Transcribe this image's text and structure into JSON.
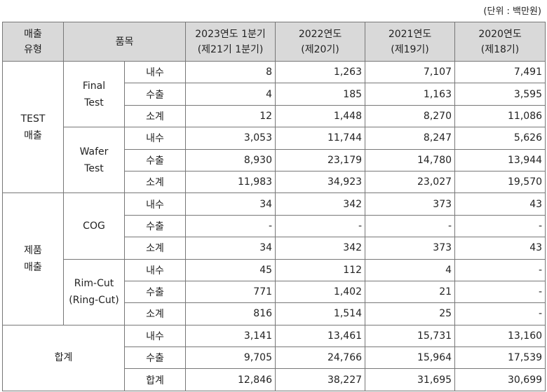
{
  "unit_label": "(단위 : 백만원)",
  "headers": {
    "type": [
      "매출",
      "유형"
    ],
    "item": "품목",
    "periods": [
      {
        "l1": "2023연도 1분기",
        "l2": "(제21기 1분기)"
      },
      {
        "l1": "2022연도",
        "l2": "(제20기)"
      },
      {
        "l1": "2021연도",
        "l2": "(제19기)"
      },
      {
        "l1": "2020연도",
        "l2": "(제18기)"
      }
    ]
  },
  "groups": [
    {
      "type": [
        "TEST",
        "매출"
      ],
      "items": [
        {
          "name": [
            "Final",
            "Test"
          ],
          "rows": [
            {
              "sub": "내수",
              "v": [
                "8",
                "1,263",
                "7,107",
                "7,491"
              ]
            },
            {
              "sub": "수출",
              "v": [
                "4",
                "185",
                "1,163",
                "3,595"
              ]
            },
            {
              "sub": "소계",
              "v": [
                "12",
                "1,448",
                "8,270",
                "11,086"
              ]
            }
          ]
        },
        {
          "name": [
            "Wafer",
            "Test"
          ],
          "rows": [
            {
              "sub": "내수",
              "v": [
                "3,053",
                "11,744",
                "8,247",
                "5,626"
              ]
            },
            {
              "sub": "수출",
              "v": [
                "8,930",
                "23,179",
                "14,780",
                "13,944"
              ]
            },
            {
              "sub": "소계",
              "v": [
                "11,983",
                "34,923",
                "23,027",
                "19,570"
              ]
            }
          ]
        }
      ]
    },
    {
      "type": [
        "제품",
        "매출"
      ],
      "items": [
        {
          "name": [
            "COG"
          ],
          "rows": [
            {
              "sub": "내수",
              "v": [
                "34",
                "342",
                "373",
                "43"
              ]
            },
            {
              "sub": "수출",
              "v": [
                "-",
                "-",
                "-",
                "-"
              ]
            },
            {
              "sub": "소계",
              "v": [
                "34",
                "342",
                "373",
                "43"
              ]
            }
          ]
        },
        {
          "name": [
            "Rim-Cut",
            "(Ring-Cut)"
          ],
          "rows": [
            {
              "sub": "내수",
              "v": [
                "45",
                "112",
                "4",
                "-"
              ]
            },
            {
              "sub": "수출",
              "v": [
                "771",
                "1,402",
                "21",
                "-"
              ]
            },
            {
              "sub": "소계",
              "v": [
                "816",
                "1,514",
                "25",
                "-"
              ]
            }
          ]
        }
      ]
    }
  ],
  "total": {
    "label": "합계",
    "rows": [
      {
        "sub": "내수",
        "v": [
          "3,141",
          "13,461",
          "15,731",
          "13,160"
        ]
      },
      {
        "sub": "수출",
        "v": [
          "9,705",
          "24,766",
          "15,964",
          "17,539"
        ]
      },
      {
        "sub": "합계",
        "v": [
          "12,846",
          "38,227",
          "31,695",
          "30,699"
        ]
      }
    ]
  }
}
